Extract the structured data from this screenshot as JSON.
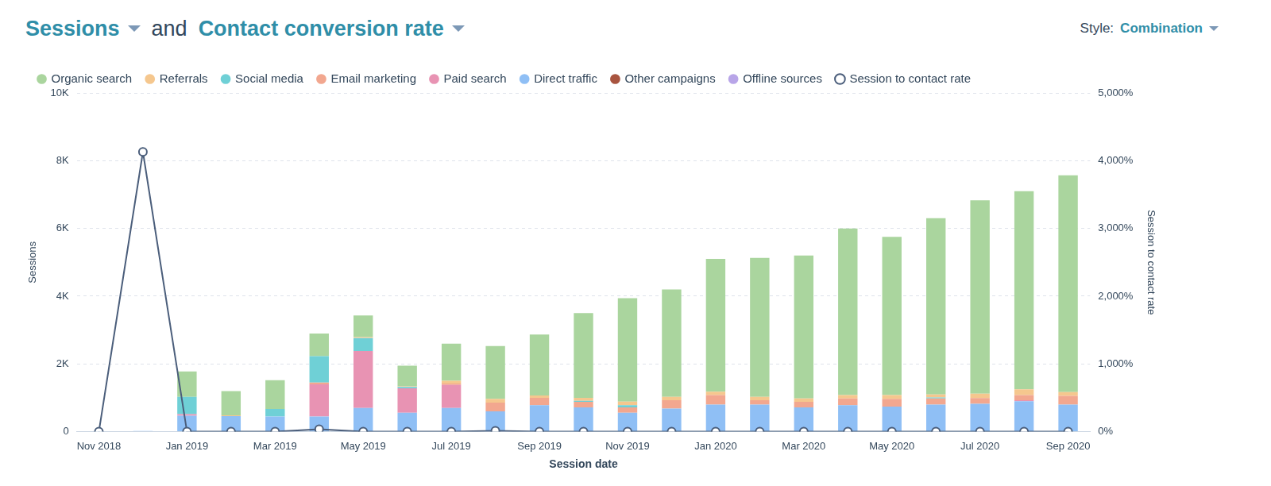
{
  "chart_data": {
    "type": "bar",
    "title": [
      "Sessions",
      "and",
      "Contact conversion rate"
    ],
    "style_selector": {
      "label": "Style:",
      "value": "Combination"
    },
    "x_label": "Session date",
    "y_label": "Sessions",
    "y2_label": "Session to contact rate",
    "categories": [
      "Nov 2018",
      null,
      "Jan 2019",
      null,
      "Mar 2019",
      null,
      "May 2019",
      null,
      "Jul 2019",
      null,
      "Sep 2019",
      null,
      "Nov 2019",
      null,
      "Jan 2020",
      null,
      "Mar 2020",
      null,
      "May 2020",
      null,
      "Jul 2020",
      null,
      "Sep 2020"
    ],
    "stacked": true,
    "grid": true,
    "legend": "top",
    "ylim": [
      0,
      10000
    ],
    "yticks": [
      0,
      {
        "value": 2000,
        "label": "2K"
      },
      {
        "value": 4000,
        "label": "4K"
      },
      {
        "value": 6000,
        "label": "6K"
      },
      {
        "value": 8000,
        "label": "8K"
      },
      {
        "value": 10000,
        "label": "10K"
      }
    ],
    "y2lim": [
      0,
      5000
    ],
    "y2ticks": [
      {
        "value": 0,
        "label": "0%"
      },
      {
        "value": 1000,
        "label": "1,000%"
      },
      {
        "value": 2000,
        "label": "2,000%"
      },
      {
        "value": 3000,
        "label": "3,000%"
      },
      {
        "value": 4000,
        "label": "4,000%"
      },
      {
        "value": 5000,
        "label": "5,000%"
      }
    ],
    "series": [
      {
        "name": "Organic search",
        "color": "#aad59e",
        "values": [
          0,
          0,
          750,
          720,
          850,
          670,
          640,
          610,
          1100,
          1560,
          1800,
          2500,
          3050,
          3170,
          3920,
          4100,
          4220,
          4920,
          4670,
          5200,
          5710,
          5850,
          6400
        ]
      },
      {
        "name": "Referrals",
        "color": "#f5c78e",
        "values": [
          0,
          0,
          0,
          20,
          0,
          0,
          30,
          20,
          80,
          110,
          70,
          90,
          110,
          100,
          100,
          100,
          100,
          100,
          110,
          90,
          130,
          170,
          110
        ]
      },
      {
        "name": "Social media",
        "color": "#6fd0d6",
        "values": [
          0,
          0,
          510,
          0,
          220,
          780,
          380,
          40,
          0,
          0,
          0,
          30,
          60,
          0,
          0,
          0,
          0,
          0,
          0,
          30,
          0,
          0,
          0
        ]
      },
      {
        "name": "Email marketing",
        "color": "#f2a78f",
        "values": [
          0,
          0,
          0,
          0,
          0,
          50,
          0,
          0,
          40,
          260,
          220,
          160,
          160,
          250,
          280,
          130,
          160,
          200,
          230,
          180,
          170,
          150,
          260
        ]
      },
      {
        "name": "Paid search",
        "color": "#e893b3",
        "values": [
          0,
          0,
          50,
          0,
          0,
          950,
          1680,
          720,
          680,
          0,
          0,
          0,
          0,
          0,
          0,
          0,
          0,
          0,
          0,
          0,
          0,
          30,
          0
        ]
      },
      {
        "name": "Direct traffic",
        "color": "#8fbff5",
        "values": [
          0,
          20,
          470,
          460,
          450,
          450,
          700,
          560,
          700,
          600,
          780,
          720,
          560,
          680,
          800,
          800,
          720,
          780,
          740,
          800,
          820,
          900,
          800
        ]
      },
      {
        "name": "Other campaigns",
        "color": "#a8543f",
        "values": [
          0,
          0,
          0,
          0,
          0,
          0,
          0,
          0,
          0,
          0,
          0,
          0,
          0,
          0,
          0,
          0,
          0,
          0,
          0,
          0,
          0,
          0,
          0
        ]
      },
      {
        "name": "Offline sources",
        "color": "#b8a5e8",
        "values": [
          0,
          0,
          0,
          0,
          0,
          0,
          0,
          0,
          0,
          0,
          0,
          0,
          0,
          0,
          0,
          0,
          0,
          0,
          0,
          0,
          0,
          0,
          0
        ]
      },
      {
        "name": "Session to contact rate",
        "type": "line",
        "axis": "y2",
        "color": "#4b5e7b",
        "marker": "circle",
        "values": [
          0,
          4130,
          0,
          0,
          0,
          35,
          0,
          0,
          0,
          12,
          0,
          0,
          0,
          0,
          0,
          0,
          0,
          0,
          0,
          0,
          0,
          0,
          0
        ]
      }
    ]
  }
}
